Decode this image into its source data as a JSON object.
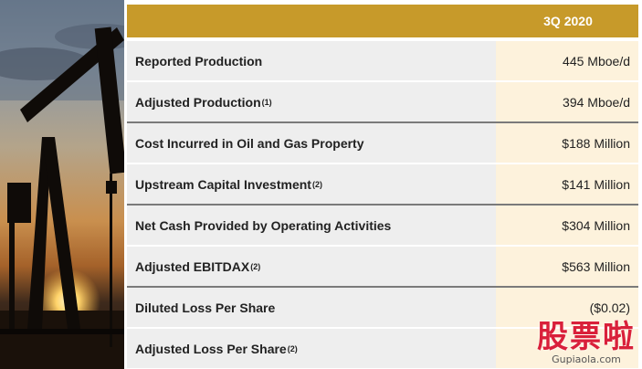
{
  "header": {
    "column_label": "3Q 2020"
  },
  "rows": [
    {
      "label": "Reported Production",
      "sup": "",
      "value": "445 Mboe/d",
      "group_start": false
    },
    {
      "label": "Adjusted Production",
      "sup": "(1)",
      "value": "394 Mboe/d",
      "group_start": false
    },
    {
      "label": "Cost Incurred in Oil and Gas Property",
      "sup": "",
      "value": "$188 Million",
      "group_start": true
    },
    {
      "label": "Upstream Capital Investment",
      "sup": "(2)",
      "value": "$141 Million",
      "group_start": false
    },
    {
      "label": "Net Cash Provided by Operating Activities",
      "sup": "",
      "value": "$304 Million",
      "group_start": true
    },
    {
      "label": "Adjusted EBITDAX",
      "sup": "(2)",
      "value": "$563 Million",
      "group_start": false
    },
    {
      "label": "Diluted Loss Per Share",
      "sup": "",
      "value": "($0.02)",
      "group_start": true
    },
    {
      "label": "Adjusted Loss Per Share",
      "sup": "(2)",
      "value": "",
      "group_start": false
    }
  ],
  "watermark": {
    "main": "股票啦",
    "sub": "Gupiaola.com"
  },
  "colors": {
    "header_bg": "#c79a2a",
    "label_bg": "#eeeeee",
    "value_bg": "#fdf2dc",
    "watermark": "#d9203a"
  },
  "photo": {
    "icon": "oil-pumpjack-sunset-photo"
  }
}
